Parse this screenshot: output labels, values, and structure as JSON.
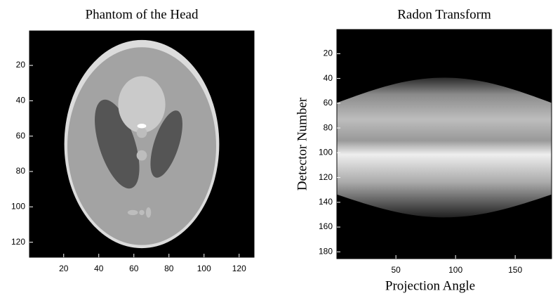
{
  "chart_data": [
    {
      "type": "image",
      "title": "Phantom of the Head",
      "xlim": [
        0.5,
        128.5
      ],
      "ylim": [
        0.5,
        128.5
      ],
      "y_reversed": true,
      "xticks": [
        20,
        40,
        60,
        80,
        100,
        120
      ],
      "yticks": [
        20,
        40,
        60,
        80,
        100,
        120
      ]
    },
    {
      "type": "image",
      "title": "Radon Transform",
      "xlabel": "Projection Angle",
      "ylabel": "Detector Number",
      "xlim": [
        0.5,
        180.5
      ],
      "ylim": [
        0.5,
        185.5
      ],
      "y_reversed": true,
      "xticks": [
        50,
        100,
        150
      ],
      "yticks": [
        20,
        40,
        60,
        80,
        100,
        120,
        140,
        160,
        180
      ]
    }
  ]
}
